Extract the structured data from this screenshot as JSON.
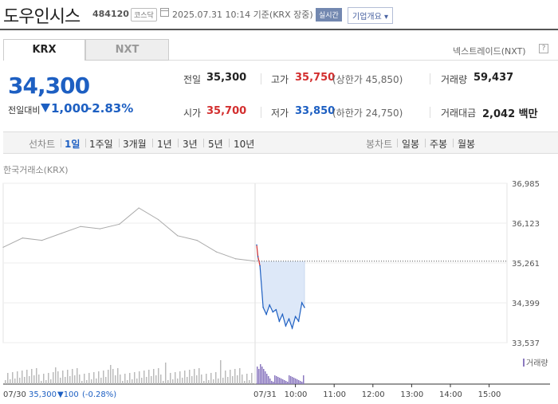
{
  "header": {
    "stock_name": "도우인시스",
    "stock_code": "484120",
    "market_badge": "코스닥",
    "date_text": "2025.07.31 10:14 기준(KRX 장중)",
    "realtime_badge": "실시간",
    "company_button": "기업개요 ▾"
  },
  "tabs": {
    "krx": "KRX",
    "nxt": "NXT",
    "nxt_link": "넥스트레이드(NXT)",
    "help": "?"
  },
  "price": {
    "current": "34,300",
    "change_label": "전일대비",
    "change": "1,000",
    "change_pct": "-2.83%"
  },
  "stats": {
    "prev_close_label": "전일",
    "prev_close": "35,300",
    "high_label": "고가",
    "high": "35,750",
    "upper_limit": "(상한가 45,850)",
    "volume_label": "거래량",
    "volume": "59,437",
    "open_label": "시가",
    "open": "35,700",
    "low_label": "저가",
    "low": "33,850",
    "lower_limit": "(하한가 24,750)",
    "amount_label": "거래대금",
    "amount": "2,042 백만"
  },
  "periods": {
    "line_label": "선차트",
    "line_options": [
      "1일",
      "1주일",
      "3개월",
      "1년",
      "3년",
      "5년",
      "10년"
    ],
    "active": "1일",
    "candle_label": "봉차트",
    "candle_options": [
      "일봉",
      "주봉",
      "월봉"
    ]
  },
  "exchange_label": "한국거래소(KRX)",
  "volume_legend": "거래량",
  "footer": {
    "prev_date": "07/30",
    "prev_price": "35,300",
    "prev_change": "▼100",
    "prev_pct": "(-0.28%)",
    "current_date": "07/31"
  },
  "colors": {
    "up": "#d32f2f",
    "down": "#1d5fc2",
    "fill": "#dde8f8",
    "volume": "#8c7ac0"
  },
  "chart_data": {
    "type": "line",
    "y_ticks": [
      "36,985",
      "36,123",
      "35,261",
      "34,399",
      "33,537"
    ],
    "ylim": [
      33537,
      36985
    ],
    "x_ticks": [
      "10:00",
      "11:00",
      "12:00",
      "13:00",
      "14:00",
      "15:00"
    ],
    "reference_price": 35300,
    "series": [
      {
        "x": [
          "07/30 09:00",
          "07/30 09:30",
          "07/30 10:00",
          "07/30 10:30",
          "07/30 11:00",
          "07/30 11:30",
          "07/30 12:00",
          "07/30 12:30",
          "07/30 13:00",
          "07/30 13:30",
          "07/30 14:00",
          "07/30 14:30",
          "07/30 15:00",
          "07/30 15:30"
        ],
        "values": [
          35600,
          35800,
          35750,
          35900,
          36050,
          36000,
          36100,
          36450,
          36200,
          35850,
          35750,
          35500,
          35350,
          35300
        ]
      },
      {
        "x": [
          "07/31 09:00",
          "07/31 09:02",
          "07/31 09:05",
          "07/31 09:10",
          "07/31 09:15",
          "07/31 09:20",
          "07/31 09:25",
          "07/31 09:30",
          "07/31 09:35",
          "07/31 09:40",
          "07/31 09:45",
          "07/31 09:50",
          "07/31 09:55",
          "07/31 10:00",
          "07/31 10:05",
          "07/31 10:10",
          "07/31 10:14"
        ],
        "values": [
          35650,
          35400,
          35200,
          34300,
          34150,
          34350,
          34200,
          34250,
          34000,
          34150,
          33900,
          34050,
          33850,
          34100,
          34000,
          34400,
          34300
        ]
      }
    ]
  }
}
